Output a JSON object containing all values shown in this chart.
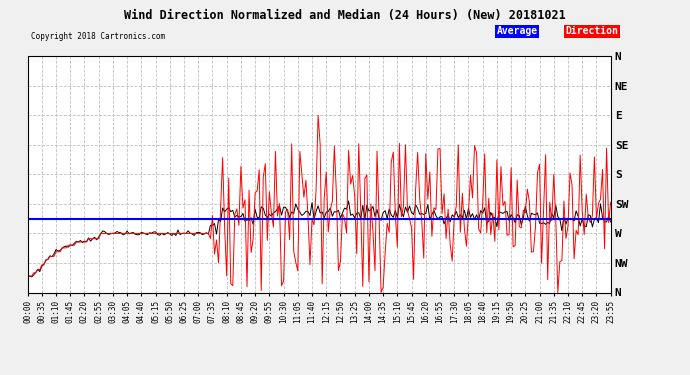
{
  "title": "Wind Direction Normalized and Median (24 Hours) (New) 20181021",
  "copyright": "Copyright 2018 Cartronics.com",
  "background_color": "#f0f0f0",
  "plot_bg_color": "#ffffff",
  "grid_color": "#c0c0c0",
  "ytick_labels": [
    "N",
    "NW",
    "W",
    "SW",
    "S",
    "SE",
    "E",
    "NE",
    "N"
  ],
  "ytick_values": [
    360,
    315,
    270,
    225,
    180,
    135,
    90,
    45,
    0
  ],
  "ylim_low": 0,
  "ylim_high": 360,
  "avg_direction": 248,
  "seed": 42,
  "n_points": 288,
  "minutes_per_point": 5
}
